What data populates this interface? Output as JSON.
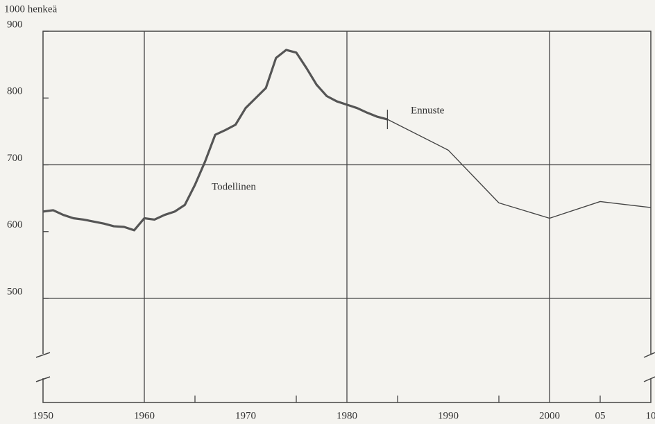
{
  "chart_data": {
    "type": "line",
    "y_axis_label": "1000 henkeä",
    "annotations": [
      "Todellinen",
      "Ennuste"
    ],
    "series": [
      {
        "name": "Todellinen",
        "color": "#555",
        "x": [
          1950,
          1951,
          1952,
          1953,
          1954,
          1955,
          1956,
          1957,
          1958,
          1959,
          1960,
          1961,
          1962,
          1963,
          1964,
          1965,
          1966,
          1967,
          1968,
          1969,
          1970,
          1971,
          1972,
          1973,
          1974,
          1975,
          1976,
          1977,
          1978,
          1979,
          1980,
          1981,
          1982,
          1983,
          1984
        ],
        "values": [
          630,
          632,
          625,
          620,
          618,
          615,
          612,
          608,
          607,
          602,
          620,
          618,
          625,
          630,
          640,
          670,
          705,
          745,
          752,
          760,
          785,
          800,
          815,
          860,
          872,
          868,
          845,
          820,
          803,
          795,
          790,
          785,
          778,
          772,
          768
        ]
      },
      {
        "name": "Ennuste",
        "color": "#444",
        "x": [
          1984,
          1990,
          1995,
          2000,
          2005,
          2010
        ],
        "values": [
          768,
          722,
          643,
          620,
          645,
          636
        ]
      }
    ],
    "xlim": [
      1950,
      2010
    ],
    "xticks": [
      1950,
      1960,
      1970,
      1980,
      1990,
      2000,
      {
        "value": 2005,
        "label": "05"
      },
      {
        "value": 2010,
        "label": "10"
      }
    ],
    "xgrid": [
      1960,
      1980,
      2000
    ],
    "xminor": [
      1965,
      1975,
      1985,
      1995,
      2005
    ],
    "ylim": [
      500,
      900
    ],
    "yticks": [
      500,
      600,
      700,
      800,
      900
    ],
    "ygrid": [
      500,
      700
    ]
  }
}
